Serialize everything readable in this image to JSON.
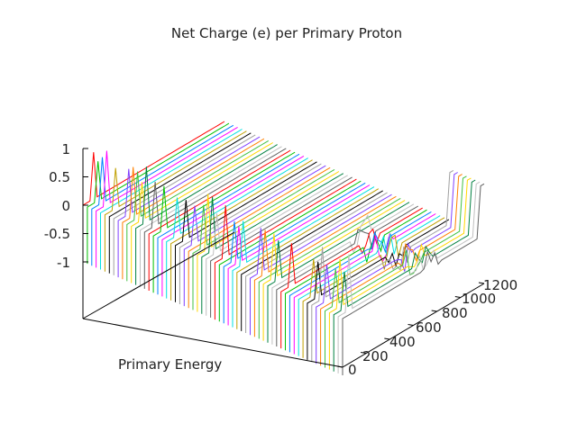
{
  "chart_data": {
    "type": "line",
    "title": "Net Charge (e) per Primary Proton",
    "xlabel": "Primary Energy",
    "ylabel": "",
    "zlabel": "",
    "z_ticks": [
      "1",
      "0.5",
      "0",
      "-0.5",
      "-1"
    ],
    "z_tick_values": [
      1,
      0.5,
      0,
      -0.5,
      -1
    ],
    "y_ticks": [
      "0",
      "200",
      "400",
      "600",
      "800",
      "1000",
      "1200"
    ],
    "y_tick_values": [
      0,
      200,
      400,
      600,
      800,
      1000,
      1200
    ],
    "zlim": [
      -1,
      1
    ],
    "ylim": [
      0,
      1200
    ],
    "grid": false,
    "legend": "none",
    "view": "3d-waterfall",
    "series_count": 60,
    "description_of_traces": "Each trace is a flat line near 0 along the depth axis (0-1200) with sharp spikes near the start (rising to ~1) and near the end of the front-most traces, plus dense noisy clusters around 600-800 on the front traces.",
    "colors": [
      "#ff0000",
      "#00c000",
      "#0080ff",
      "#ff00ff",
      "#00e0e0",
      "#c0a000",
      "#000000",
      "#a0a0a0",
      "#8040ff",
      "#ff8000",
      "#40c040",
      "#ffd700",
      "#008040",
      "#c0c0c0",
      "#606060"
    ]
  }
}
